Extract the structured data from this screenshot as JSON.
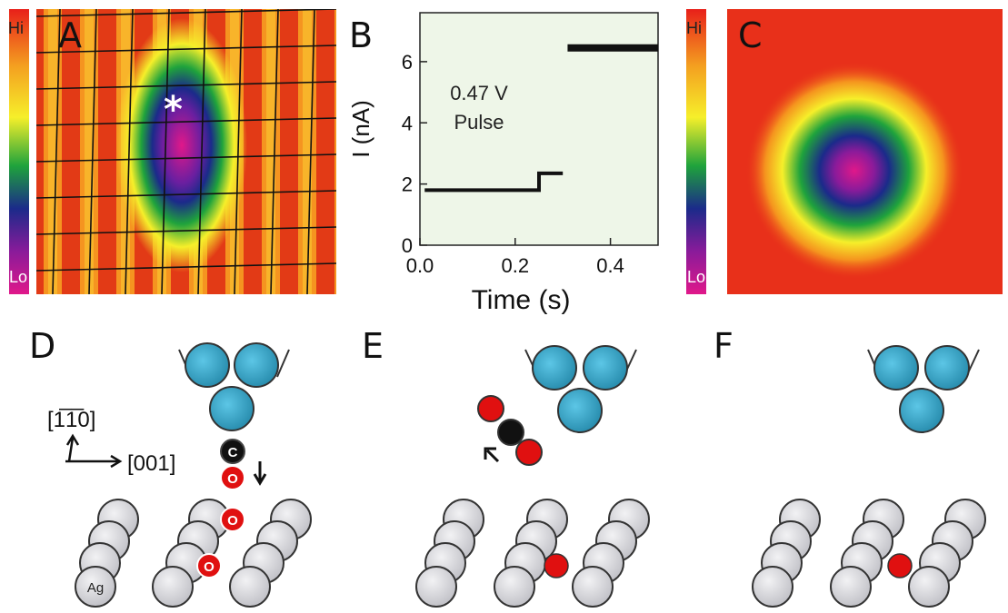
{
  "panels": {
    "A": {
      "label": "A",
      "colorbar_hi": "Hi",
      "colorbar_lo": "Lo",
      "marker": "*"
    },
    "B": {
      "label": "B",
      "annotation_line1": "0.47 V",
      "annotation_line2": "Pulse"
    },
    "C": {
      "label": "C",
      "colorbar_hi": "Hi",
      "colorbar_lo": "Lo"
    },
    "D": {
      "label": "D",
      "dir_up": "[1̅1̅0]",
      "dir_right": "[001]",
      "atom_carbon": "C",
      "atom_oxygen": "O",
      "atom_silver": "Ag"
    },
    "E": {
      "label": "E"
    },
    "F": {
      "label": "F"
    }
  },
  "colors": {
    "tip_atom": "#3aa7c9",
    "substrate_atom": "#d8d8dc",
    "oxygen": "#e01010",
    "carbon": "#111111",
    "plot_bg": "#eef6e8"
  },
  "chart_data": {
    "type": "line",
    "xlabel": "Time (s)",
    "ylabel": "I (nA)",
    "xlim": [
      0.0,
      0.5
    ],
    "ylim": [
      0,
      7.6
    ],
    "xticks": [
      0.0,
      0.2,
      0.4
    ],
    "xtick_labels": [
      "0.0",
      "0.2",
      "0.4"
    ],
    "yticks": [
      0,
      2,
      4,
      6
    ],
    "ytick_labels": [
      "0",
      "2",
      "4",
      "6"
    ],
    "series": [
      {
        "x": [
          0.01,
          0.25,
          0.25,
          0.3
        ],
        "y": [
          1.8,
          1.8,
          2.35,
          2.35
        ]
      },
      {
        "x": [
          0.31,
          0.5
        ],
        "y": [
          6.45,
          6.45
        ]
      }
    ]
  }
}
